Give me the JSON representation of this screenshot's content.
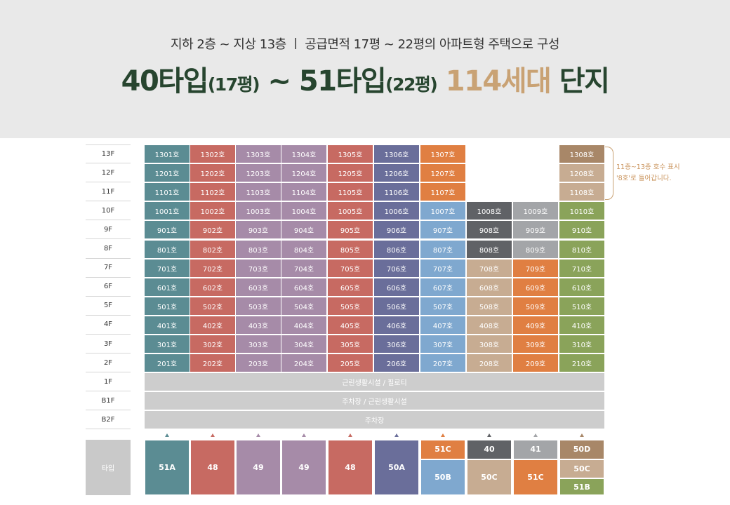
{
  "header": {
    "subtitle": "지하 2층 ~ 지상 13층  ㅣ  공급면적 17평 ~ 22평의 아파트형 주택으로 구성",
    "headline": [
      {
        "text": "40타입",
        "style": "big"
      },
      {
        "text": "(17평)",
        "style": "small"
      },
      {
        "text": " ~ 51타입",
        "style": "big"
      },
      {
        "text": "(22평)",
        "style": "small"
      },
      {
        "text": " 114세대",
        "style": "accent"
      },
      {
        "text": " 단지",
        "style": "big"
      }
    ]
  },
  "colors": {
    "51A": "#5b8c93",
    "48": "#c76a62",
    "49": "#a68ba8",
    "50A": "#6a6e9a",
    "51C": "#e07f42",
    "50B": "#7fa8cf",
    "40": "#606266",
    "41": "#a3a5a8",
    "50C": "#c7ac92",
    "50D": "#a88768",
    "51B": "#8aa35a"
  },
  "floors": [
    "13F",
    "12F",
    "11F",
    "10F",
    "9F",
    "8F",
    "7F",
    "6F",
    "5F",
    "4F",
    "3F",
    "2F",
    "1F",
    "B1F",
    "B2F"
  ],
  "units": [
    [
      "1301호",
      "1302호",
      "1303호",
      "1304호",
      "1305호",
      "1306호",
      "1307호",
      "",
      "",
      "1308호"
    ],
    [
      "1201호",
      "1202호",
      "1203호",
      "1204호",
      "1205호",
      "1206호",
      "1207호",
      "",
      "",
      "1208호"
    ],
    [
      "1101호",
      "1102호",
      "1103호",
      "1104호",
      "1105호",
      "1106호",
      "1107호",
      "",
      "",
      "1108호"
    ],
    [
      "1001호",
      "1002호",
      "1003호",
      "1004호",
      "1005호",
      "1006호",
      "1007호",
      "1008호",
      "1009호",
      "1010호"
    ],
    [
      "901호",
      "902호",
      "903호",
      "904호",
      "905호",
      "906호",
      "907호",
      "908호",
      "909호",
      "910호"
    ],
    [
      "801호",
      "802호",
      "803호",
      "804호",
      "805호",
      "806호",
      "807호",
      "808호",
      "809호",
      "810호"
    ],
    [
      "701호",
      "702호",
      "703호",
      "704호",
      "705호",
      "706호",
      "707호",
      "708호",
      "709호",
      "710호"
    ],
    [
      "601호",
      "602호",
      "603호",
      "604호",
      "605호",
      "606호",
      "607호",
      "608호",
      "609호",
      "610호"
    ],
    [
      "501호",
      "502호",
      "503호",
      "504호",
      "505호",
      "506호",
      "507호",
      "508호",
      "509호",
      "510호"
    ],
    [
      "401호",
      "402호",
      "403호",
      "404호",
      "405호",
      "406호",
      "407호",
      "408호",
      "409호",
      "410호"
    ],
    [
      "301호",
      "302호",
      "303호",
      "304호",
      "305호",
      "306호",
      "307호",
      "308호",
      "309호",
      "310호"
    ],
    [
      "201호",
      "202호",
      "203호",
      "204호",
      "205호",
      "206호",
      "207호",
      "208호",
      "209호",
      "210호"
    ]
  ],
  "unit_types": [
    [
      "51A",
      "48",
      "49",
      "49",
      "48",
      "50A",
      "51C",
      "",
      "",
      "50D"
    ],
    [
      "51A",
      "48",
      "49",
      "49",
      "48",
      "50A",
      "51C",
      "",
      "",
      "50C"
    ],
    [
      "51A",
      "48",
      "49",
      "49",
      "48",
      "50A",
      "51C",
      "",
      "",
      "50C"
    ],
    [
      "51A",
      "48",
      "49",
      "49",
      "48",
      "50A",
      "50B",
      "40",
      "41",
      "51B"
    ],
    [
      "51A",
      "48",
      "49",
      "49",
      "48",
      "50A",
      "50B",
      "40",
      "41",
      "51B"
    ],
    [
      "51A",
      "48",
      "49",
      "49",
      "48",
      "50A",
      "50B",
      "40",
      "41",
      "51B"
    ],
    [
      "51A",
      "48",
      "49",
      "49",
      "48",
      "50A",
      "50B",
      "50C",
      "51C",
      "51B"
    ],
    [
      "51A",
      "48",
      "49",
      "49",
      "48",
      "50A",
      "50B",
      "50C",
      "51C",
      "51B"
    ],
    [
      "51A",
      "48",
      "49",
      "49",
      "48",
      "50A",
      "50B",
      "50C",
      "51C",
      "51B"
    ],
    [
      "51A",
      "48",
      "49",
      "49",
      "48",
      "50A",
      "50B",
      "50C",
      "51C",
      "51B"
    ],
    [
      "51A",
      "48",
      "49",
      "49",
      "48",
      "50A",
      "50B",
      "50C",
      "51C",
      "51B"
    ],
    [
      "51A",
      "48",
      "49",
      "49",
      "48",
      "50A",
      "50B",
      "50C",
      "51C",
      "51B"
    ]
  ],
  "lower_floors": [
    "근린생활시설 / 필로티",
    "주차장 / 근린생활시설",
    "주차장"
  ],
  "note": [
    "11층~13층 호수 표시",
    "'8호'로 들어갑니다."
  ],
  "type_row": {
    "label": "타입",
    "columns": [
      [
        {
          "type": "51A",
          "share": 1
        }
      ],
      [
        {
          "type": "48",
          "share": 1
        }
      ],
      [
        {
          "type": "49",
          "share": 1
        }
      ],
      [
        {
          "type": "49",
          "share": 1
        }
      ],
      [
        {
          "type": "48",
          "share": 1
        }
      ],
      [
        {
          "type": "50A",
          "share": 1
        }
      ],
      [
        {
          "type": "51C",
          "share": 0.35
        },
        {
          "type": "50B",
          "share": 0.65
        }
      ],
      [
        {
          "type": "40",
          "share": 0.35
        },
        {
          "type": "50C",
          "share": 0.65
        }
      ],
      [
        {
          "type": "41",
          "share": 0.35
        },
        {
          "type": "51C",
          "share": 0.65
        }
      ],
      [
        {
          "type": "50D",
          "share": 0.35
        },
        {
          "type": "50C",
          "share": 0.35
        },
        {
          "type": "51B",
          "share": 0.3
        }
      ]
    ]
  }
}
